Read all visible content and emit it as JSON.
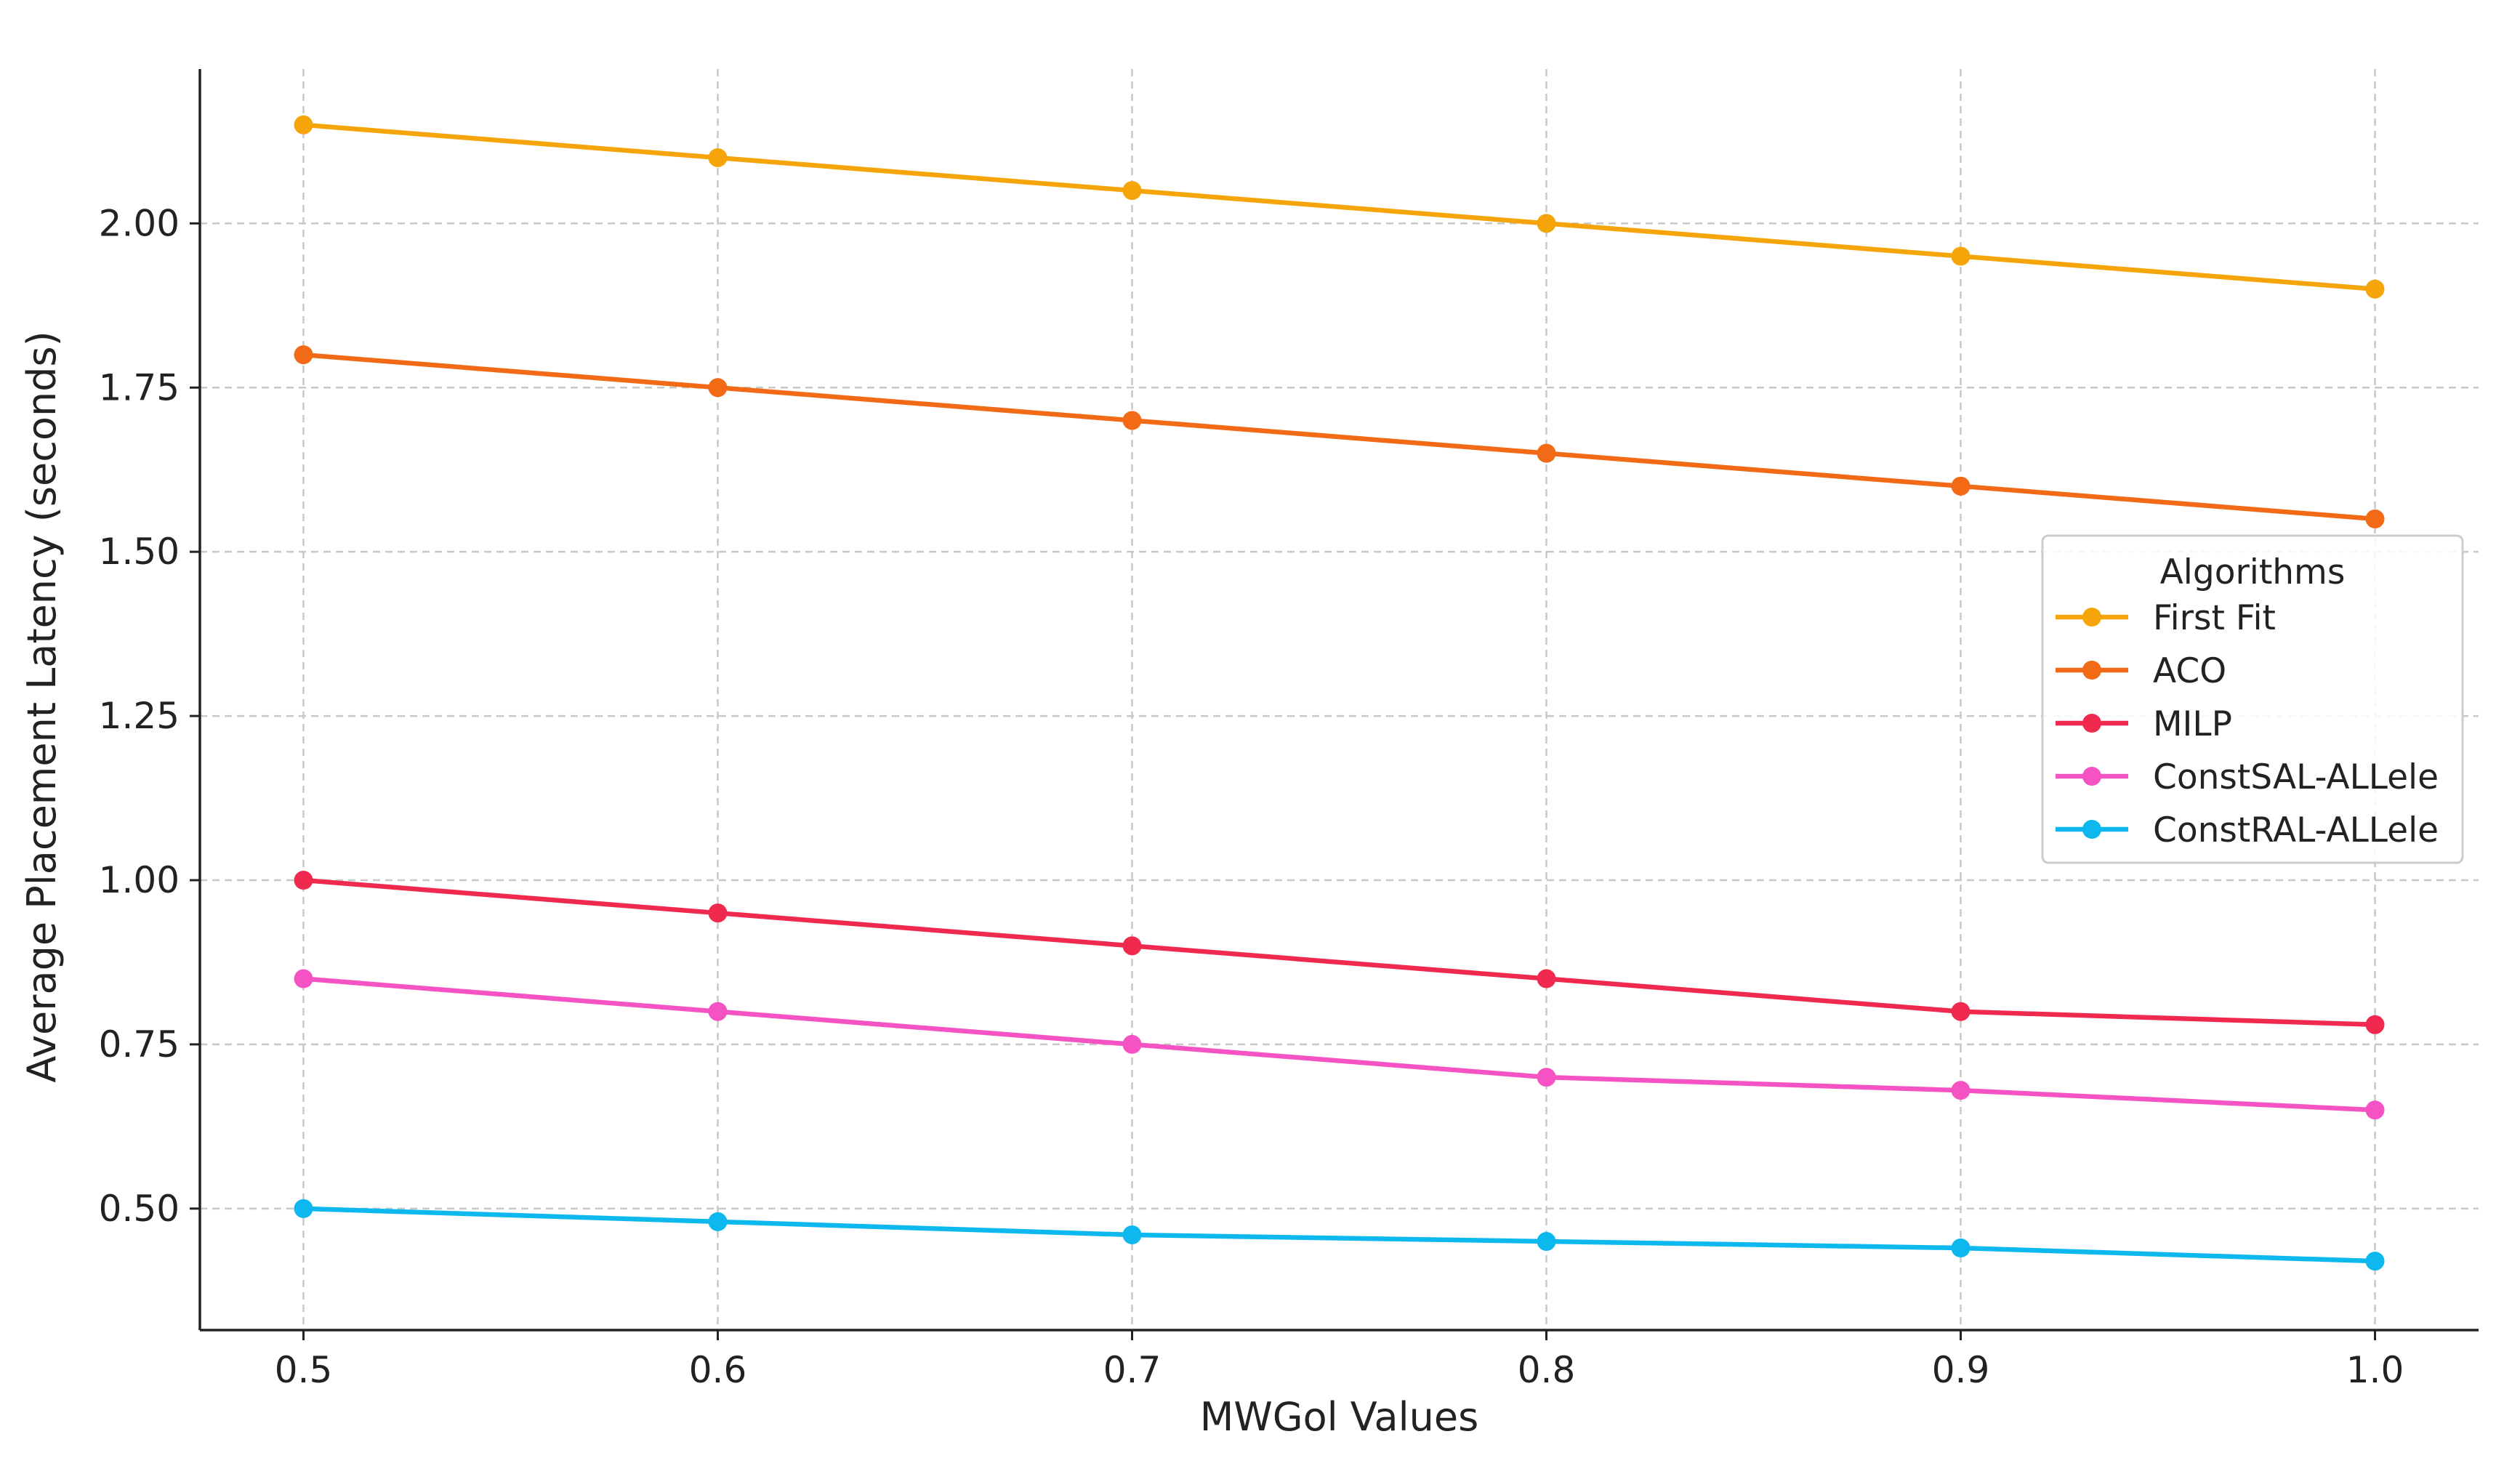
{
  "chart_data": {
    "type": "line",
    "title": "",
    "xlabel": "MWGol Values",
    "ylabel": "Average Placement Latency (seconds)",
    "x": [
      0.5,
      0.6,
      0.7,
      0.8,
      0.9,
      1.0
    ],
    "x_tick_labels": [
      "0.5",
      "0.6",
      "0.7",
      "0.8",
      "0.9",
      "1.0"
    ],
    "y_ticks": [
      0.5,
      0.75,
      1.0,
      1.25,
      1.5,
      1.75,
      2.0
    ],
    "y_tick_labels": [
      "0.50",
      "0.75",
      "1.00",
      "1.25",
      "1.50",
      "1.75",
      "2.00"
    ],
    "xlim": [
      0.475,
      1.025
    ],
    "ylim": [
      0.315,
      2.235
    ],
    "grid": true,
    "legend": {
      "title": "Algorithms",
      "placement": "center-right"
    },
    "series": [
      {
        "name": "First Fit",
        "color": "#F5A50A",
        "values": [
          2.15,
          2.1,
          2.05,
          2.0,
          1.95,
          1.9
        ]
      },
      {
        "name": "ACO",
        "color": "#F26A16",
        "values": [
          1.8,
          1.75,
          1.7,
          1.65,
          1.6,
          1.55
        ]
      },
      {
        "name": "MILP",
        "color": "#F0294E",
        "values": [
          1.0,
          0.95,
          0.9,
          0.85,
          0.8,
          0.78
        ]
      },
      {
        "name": "ConstSAL-ALLele",
        "color": "#F553C3",
        "values": [
          0.85,
          0.8,
          0.75,
          0.7,
          0.68,
          0.65
        ]
      },
      {
        "name": "ConstRAL-ALLele",
        "color": "#0CB8EE",
        "values": [
          0.5,
          0.48,
          0.46,
          0.45,
          0.44,
          0.42
        ]
      }
    ]
  }
}
